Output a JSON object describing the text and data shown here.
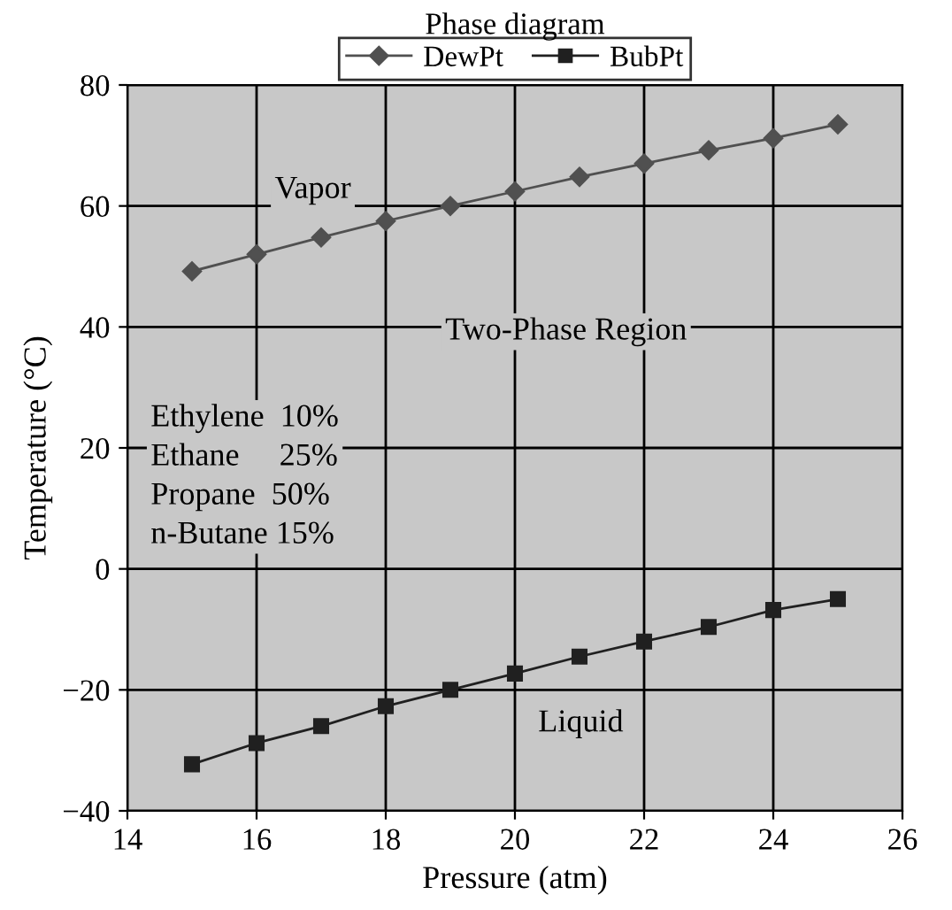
{
  "chart_data": {
    "type": "line",
    "title": "Phase diagram",
    "xlabel": "Pressure (atm)",
    "ylabel": "Temperature (°C)",
    "x": [
      15,
      16,
      17,
      18,
      19,
      20,
      21,
      22,
      23,
      24,
      25
    ],
    "series": [
      {
        "name": "DewPt",
        "color": "#505050",
        "marker": "diamond",
        "values": [
          49.2,
          52,
          54.8,
          57.5,
          60,
          62.4,
          64.8,
          67,
          69.2,
          71.2,
          73.5
        ]
      },
      {
        "name": "BubPt",
        "color": "#202020",
        "marker": "square",
        "values": [
          -32.3,
          -28.8,
          -26,
          -22.7,
          -20,
          -17.3,
          -14.5,
          -12,
          -9.6,
          -6.8,
          -5
        ]
      }
    ],
    "xlim": [
      14,
      26
    ],
    "xticks": [
      14,
      16,
      18,
      20,
      22,
      24,
      26
    ],
    "ylim": [
      -40,
      80
    ],
    "yticks": [
      {
        "value": -40,
        "label": "−40"
      },
      {
        "value": -20,
        "label": "−20"
      },
      0,
      20,
      40,
      60,
      80
    ],
    "grid": true,
    "legend": "top",
    "line_style": "solid",
    "annotations": [
      "Vapor",
      "Two-Phase Region",
      "Ethylene  10%\nEthane     25%\nPropane  50%\nn-Butane 15%",
      "Liquid"
    ]
  }
}
